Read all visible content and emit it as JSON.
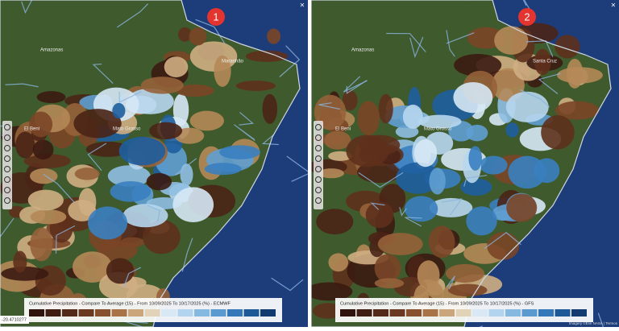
{
  "panels": [
    {
      "badge": "1",
      "legend_title": "Cumulative Precipitation - Compare To Average (15) - From 10/09/2025 To 10/17/2025 (%) - ECMWF",
      "coordinates": "-20.4710277",
      "places": [
        "Amazonas",
        "El Beni",
        "Mato Grosso",
        "Maranhão"
      ]
    },
    {
      "badge": "2",
      "legend_title": "Cumulative Precipitation - Compare To Average (15) - From 10/09/2025 To 10/17/2025 (%) - GFS",
      "attribution": "Imagery ©Esri NASA | Termos",
      "places": [
        "Amazonas",
        "El Beni",
        "Mato Grosso",
        "Santa Cruz"
      ]
    }
  ]
}
